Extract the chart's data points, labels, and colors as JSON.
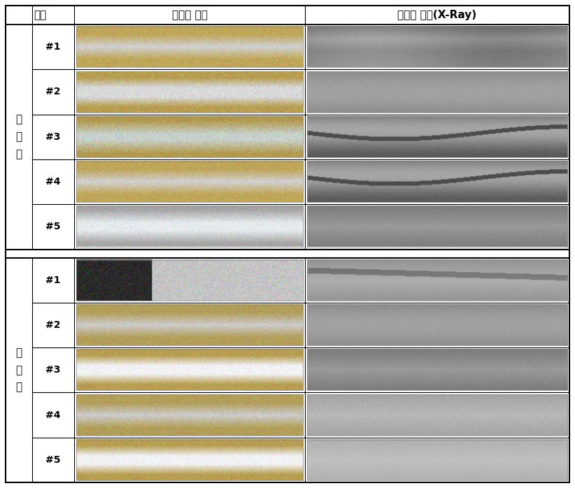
{
  "col_header_1": "구분",
  "col_header_2": "용접부 외관",
  "col_header_3": "용접부 내부(X-Ray)",
  "group1_label": "시\n제\n품",
  "group2_label": "양\n산\n품",
  "row_labels": [
    "#1",
    "#2",
    "#3",
    "#4",
    "#5"
  ],
  "bg_color": "#ffffff",
  "border_color": "#000000",
  "text_color": "#000000"
}
